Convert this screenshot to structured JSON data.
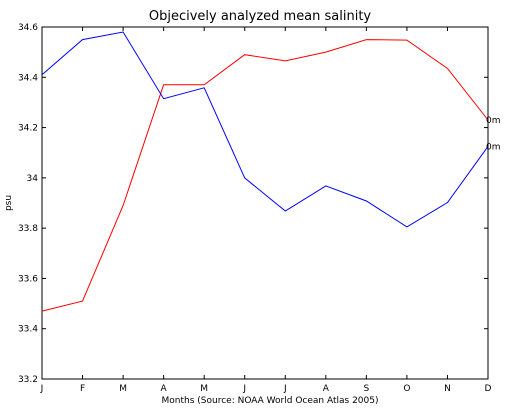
{
  "chart_data": {
    "type": "line",
    "title": "Objecively analyzed mean salinity",
    "xlabel": "Months (Source: NOAA World Ocean Atlas 2005)",
    "ylabel": "psu",
    "categories": [
      "J",
      "F",
      "M",
      "A",
      "M",
      "J",
      "J",
      "A",
      "S",
      "O",
      "N",
      "D"
    ],
    "ylim": [
      33.2,
      34.6
    ],
    "yticks": [
      "33.2",
      "33.4",
      "33.6",
      "33.8",
      "34",
      "34.2",
      "34.4",
      "34.6"
    ],
    "grid": false,
    "series": [
      {
        "color": "#ff0000",
        "end_label": "0m",
        "values": [
          33.47,
          33.51,
          33.89,
          34.37,
          34.37,
          34.49,
          34.465,
          34.5,
          34.55,
          34.548,
          34.435,
          34.23
        ]
      },
      {
        "color": "#0000ff",
        "end_label": "0m",
        "values": [
          34.41,
          34.55,
          34.58,
          34.315,
          34.358,
          34.0,
          33.868,
          33.968,
          33.908,
          33.805,
          33.902,
          34.125
        ]
      }
    ]
  }
}
